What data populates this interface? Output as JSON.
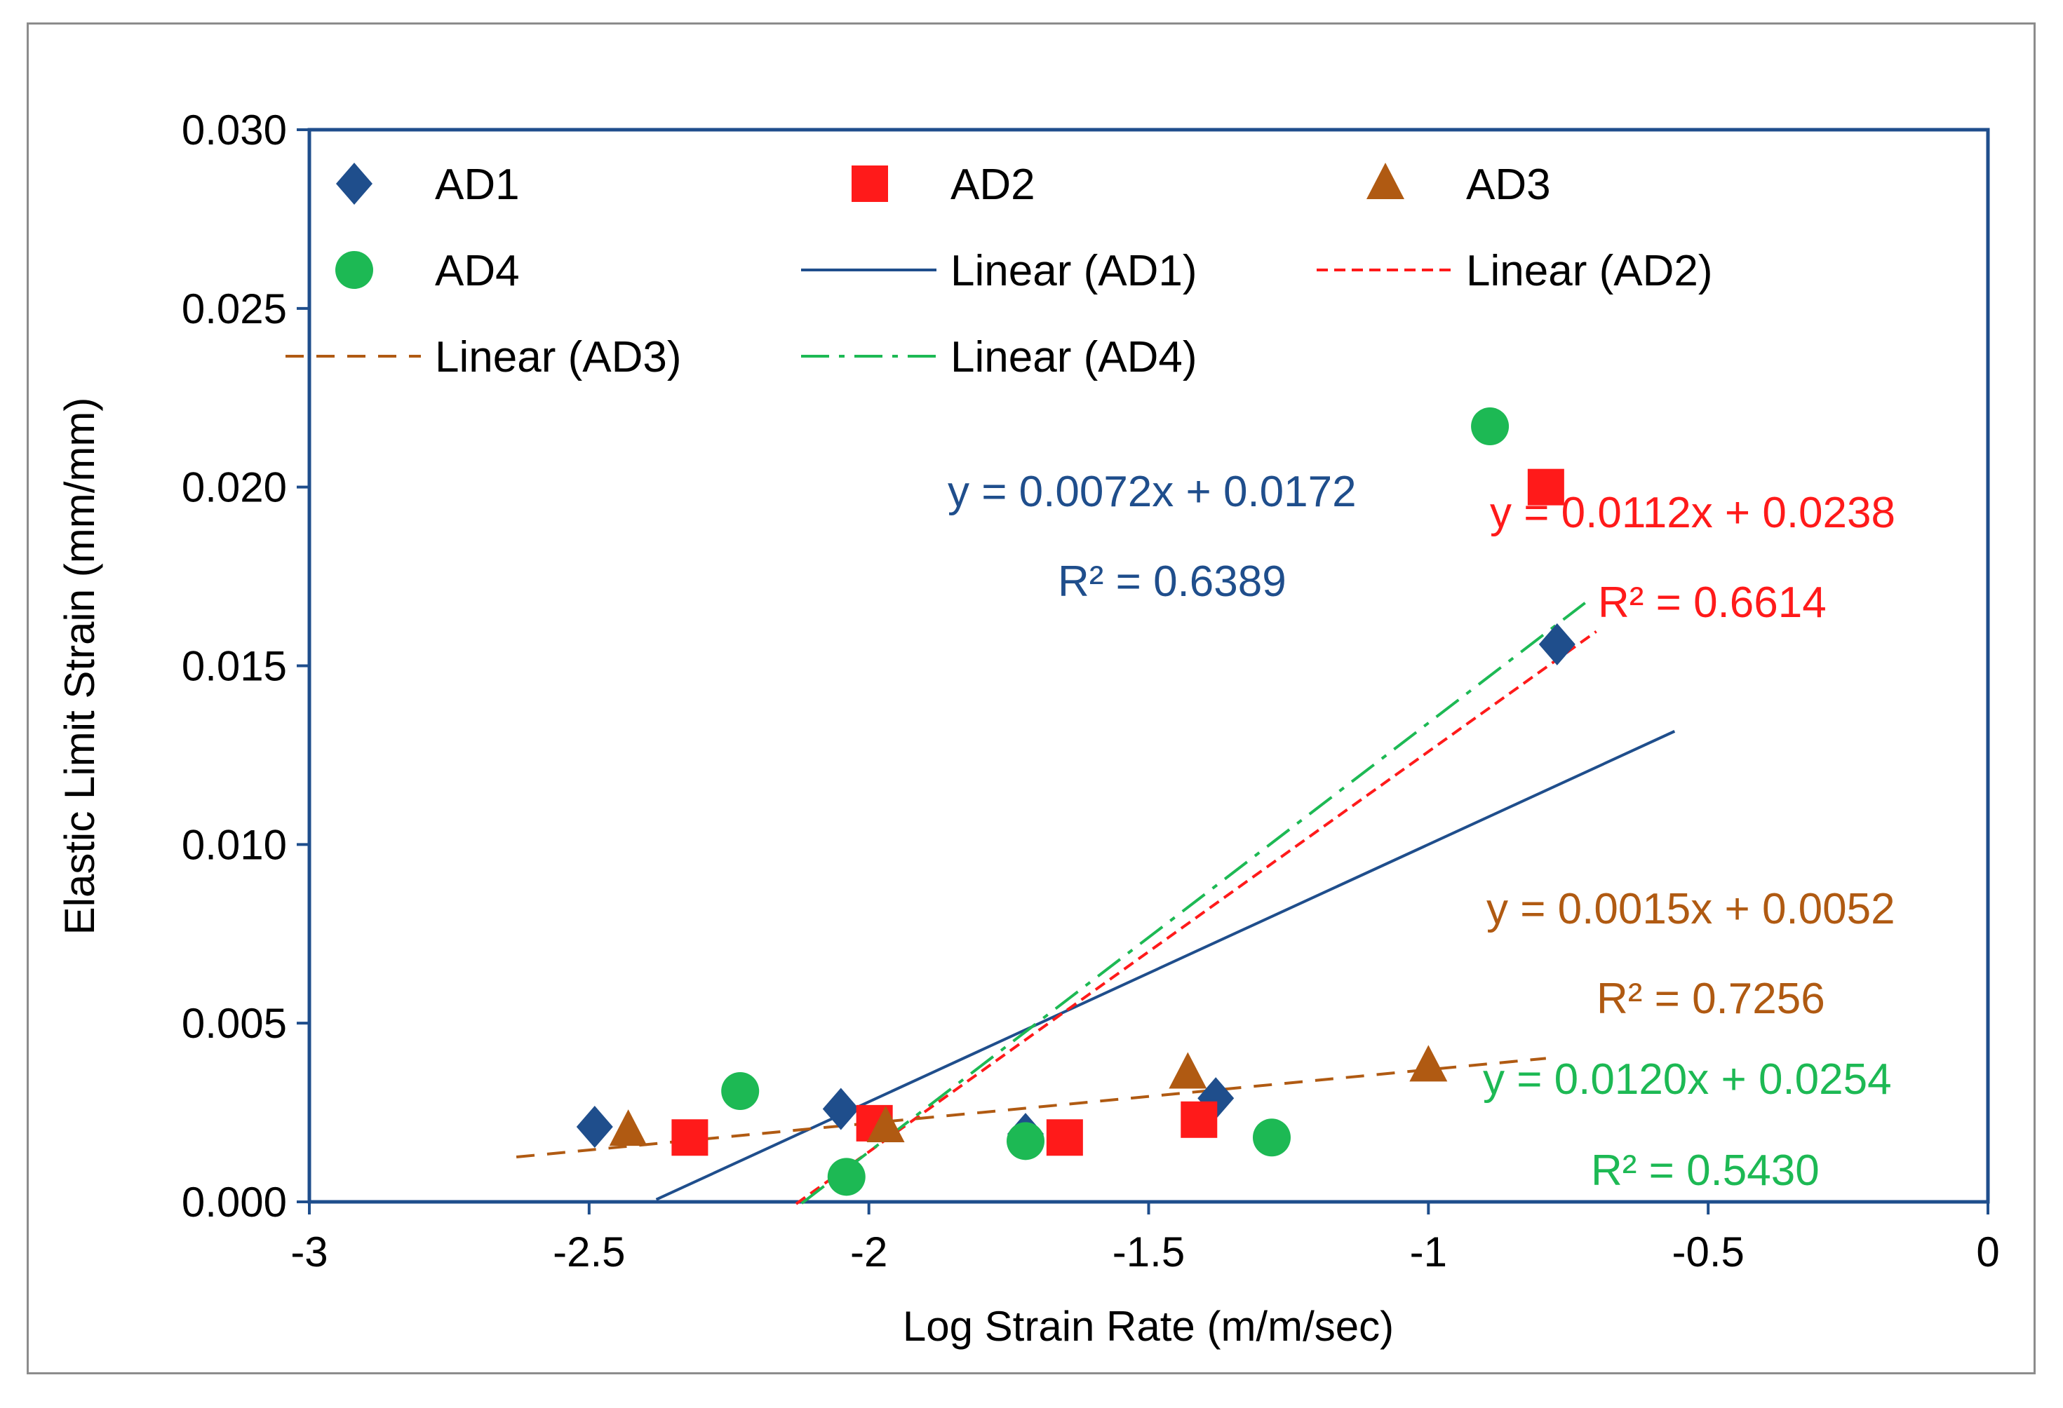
{
  "chart_data": {
    "type": "scatter",
    "xlabel": "Log Strain Rate (m/m/sec)",
    "ylabel": "Elastic Limit Strain (mm/mm)",
    "xlim": [
      -3,
      0
    ],
    "ylim": [
      0,
      0.03
    ],
    "x_ticks": [
      -3,
      -2.5,
      -2,
      -1.5,
      -1,
      -0.5,
      0
    ],
    "x_tick_labels": [
      "-3",
      "-2.5",
      "-2",
      "-1.5",
      "-1",
      "-0.5",
      "0"
    ],
    "y_ticks": [
      0,
      0.005,
      0.01,
      0.015,
      0.02,
      0.025,
      0.03
    ],
    "y_tick_labels": [
      "0.000",
      "0.005",
      "0.010",
      "0.015",
      "0.020",
      "0.025",
      "0.030"
    ],
    "grid": false,
    "legend_position": "top",
    "series": [
      {
        "name": "AD1",
        "marker": "diamond",
        "color": "#1f4e8c",
        "x": [
          -2.49,
          -2.05,
          -1.72,
          -1.38,
          -0.77
        ],
        "y": [
          0.0021,
          0.0026,
          0.0019,
          0.0029,
          0.0156
        ]
      },
      {
        "name": "AD2",
        "marker": "square",
        "color": "#ff1a1a",
        "x": [
          -2.32,
          -1.99,
          -1.65,
          -1.41,
          -0.79
        ],
        "y": [
          0.0018,
          0.0022,
          0.0018,
          0.0023,
          0.02
        ]
      },
      {
        "name": "AD3",
        "marker": "triangle",
        "color": "#b05a12",
        "x": [
          -2.43,
          -1.97,
          -1.43,
          -1.0
        ],
        "y": [
          0.002,
          0.0021,
          0.0036,
          0.0038
        ]
      },
      {
        "name": "AD4",
        "marker": "circle",
        "color": "#1db954",
        "x": [
          -2.23,
          -2.04,
          -1.72,
          -1.28,
          -0.89
        ],
        "y": [
          0.0031,
          0.0007,
          0.0017,
          0.0018,
          0.0217
        ]
      }
    ],
    "trendlines": [
      {
        "name": "Linear (AD1)",
        "color": "#1f4e8c",
        "style": "solid",
        "slope": 0.0072,
        "intercept": 0.0172,
        "x_range": [
          -2.38,
          -0.56
        ],
        "equation": "y = 0.0072x + 0.0172",
        "r2": "R² = 0.6389"
      },
      {
        "name": "Linear (AD2)",
        "color": "#ff1a1a",
        "style": "short-dash",
        "slope": 0.0112,
        "intercept": 0.0238,
        "x_range": [
          -2.13,
          -0.7
        ],
        "equation": "y = 0.0112x + 0.0238",
        "r2": "R² = 0.6614"
      },
      {
        "name": "Linear (AD3)",
        "color": "#b05a12",
        "style": "dash",
        "slope": 0.0015,
        "intercept": 0.0052,
        "x_range": [
          -2.63,
          -0.79
        ],
        "equation": "y = 0.0015x + 0.0052",
        "r2": "R² = 0.7256"
      },
      {
        "name": "Linear (AD4)",
        "color": "#1db954",
        "style": "dash-dot",
        "slope": 0.012,
        "intercept": 0.0254,
        "x_range": [
          -2.12,
          -0.72
        ],
        "equation": "y = 0.0120x + 0.0254",
        "r2": "R² = 0.5430"
      }
    ],
    "legend": [
      "AD1",
      "AD2",
      "AD3",
      "AD4",
      "Linear (AD1)",
      "Linear (AD2)",
      "Linear (AD3)",
      "Linear (AD4)"
    ]
  }
}
